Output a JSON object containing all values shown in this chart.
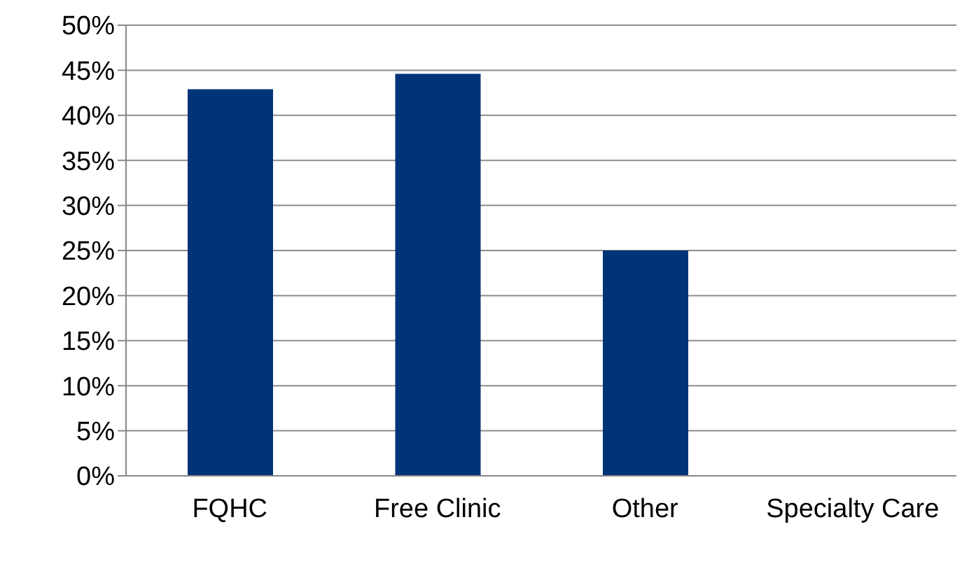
{
  "chart_data": {
    "type": "bar",
    "categories": [
      "FQHC",
      "Free Clinic",
      "Other",
      "Specialty Care"
    ],
    "values": [
      42.9,
      44.6,
      25,
      0
    ],
    "color": "#003478",
    "ylim": [
      0,
      50
    ],
    "yticks": [
      {
        "value": 0,
        "label": "0%"
      },
      {
        "value": 5,
        "label": "5%"
      },
      {
        "value": 10,
        "label": "10%"
      },
      {
        "value": 15,
        "label": "15%"
      },
      {
        "value": 20,
        "label": "20%"
      },
      {
        "value": 25,
        "label": "25%"
      },
      {
        "value": 30,
        "label": "30%"
      },
      {
        "value": 35,
        "label": "35%"
      },
      {
        "value": 40,
        "label": "40%"
      },
      {
        "value": 45,
        "label": "45%"
      },
      {
        "value": 50,
        "label": "50%"
      }
    ],
    "grid": "y"
  }
}
